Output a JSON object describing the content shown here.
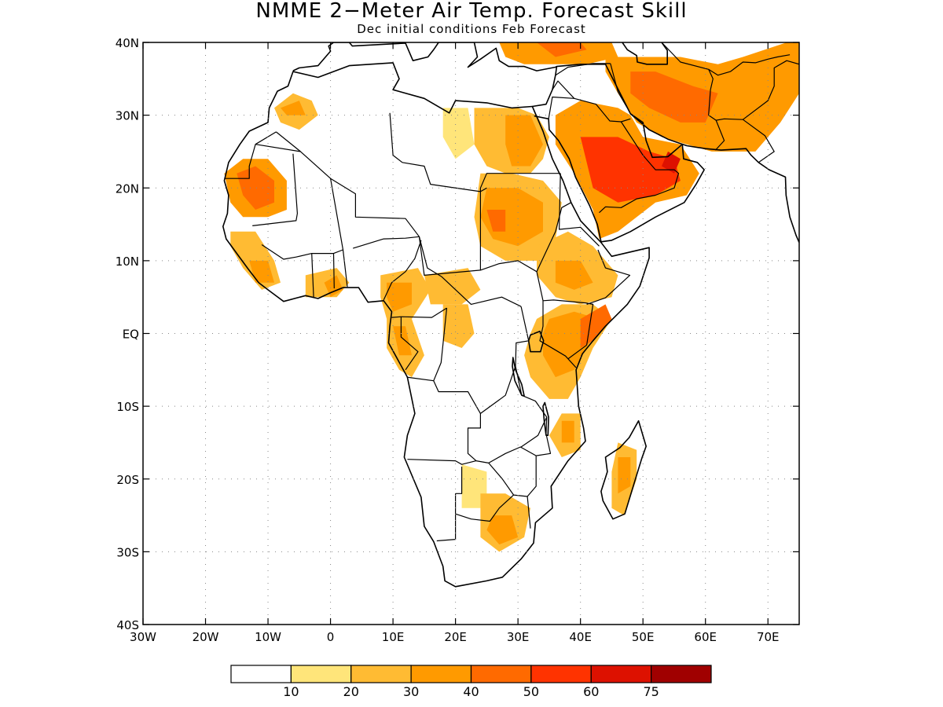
{
  "title": "NMME 2−Meter Air Temp. Forecast Skill",
  "subtitle": "Dec initial conditions  Feb Forecast",
  "map": {
    "lon_range": [
      -30,
      75
    ],
    "lat_range": [
      -40,
      40
    ],
    "grid": "dotted",
    "lon_ticks": [
      {
        "value": -30,
        "label": "30W"
      },
      {
        "value": -20,
        "label": "20W"
      },
      {
        "value": -10,
        "label": "10W"
      },
      {
        "value": 0,
        "label": "0"
      },
      {
        "value": 10,
        "label": "10E"
      },
      {
        "value": 20,
        "label": "20E"
      },
      {
        "value": 30,
        "label": "30E"
      },
      {
        "value": 40,
        "label": "40E"
      },
      {
        "value": 50,
        "label": "50E"
      },
      {
        "value": 60,
        "label": "60E"
      },
      {
        "value": 70,
        "label": "70E"
      }
    ],
    "lat_ticks": [
      {
        "value": 40,
        "label": "40N"
      },
      {
        "value": 30,
        "label": "30N"
      },
      {
        "value": 20,
        "label": "20N"
      },
      {
        "value": 10,
        "label": "10N"
      },
      {
        "value": 0,
        "label": "EQ"
      },
      {
        "value": -10,
        "label": "10S"
      },
      {
        "value": -20,
        "label": "20S"
      },
      {
        "value": -30,
        "label": "30S"
      },
      {
        "value": -40,
        "label": "40S"
      }
    ]
  },
  "colors": {
    "bins": [
      "#ffffff",
      "#ffe57a",
      "#ffbb33",
      "#ff9a00",
      "#ff6a00",
      "#ff3300",
      "#dd1100",
      "#a00000"
    ],
    "coast": "#000000"
  },
  "legend": {
    "labels": [
      "10",
      "20",
      "30",
      "40",
      "50",
      "60",
      "75"
    ]
  },
  "skill_regions": [
    {
      "name": "arabia",
      "level": 3,
      "pts": [
        [
          36,
          30
        ],
        [
          40,
          32
        ],
        [
          46,
          31
        ],
        [
          48,
          30
        ],
        [
          50,
          27
        ],
        [
          56,
          26
        ],
        [
          59,
          22
        ],
        [
          57,
          19
        ],
        [
          52,
          18
        ],
        [
          46,
          14
        ],
        [
          43,
          13
        ],
        [
          42,
          17
        ],
        [
          39,
          22
        ],
        [
          36,
          26
        ]
      ]
    },
    {
      "name": "arabia-core",
      "level": 5,
      "pts": [
        [
          40,
          27
        ],
        [
          46,
          27
        ],
        [
          51,
          25
        ],
        [
          55,
          24
        ],
        [
          56,
          21
        ],
        [
          52,
          19
        ],
        [
          46,
          18
        ],
        [
          42,
          20
        ]
      ]
    },
    {
      "name": "arabia-peak",
      "level": 6,
      "pts": [
        [
          54,
          25
        ],
        [
          56,
          24
        ],
        [
          55,
          22
        ],
        [
          53,
          23
        ]
      ]
    },
    {
      "name": "iran",
      "level": 3,
      "pts": [
        [
          44,
          38
        ],
        [
          50,
          38
        ],
        [
          56,
          38
        ],
        [
          62,
          37
        ],
        [
          66,
          38
        ],
        [
          73,
          40
        ],
        [
          75,
          40
        ],
        [
          75,
          33
        ],
        [
          72,
          29
        ],
        [
          68,
          25
        ],
        [
          61,
          25
        ],
        [
          57,
          26
        ],
        [
          53,
          27
        ],
        [
          49,
          29
        ],
        [
          46,
          33
        ],
        [
          44,
          36
        ]
      ]
    },
    {
      "name": "iran-core",
      "level": 4,
      "pts": [
        [
          48,
          36
        ],
        [
          52,
          36
        ],
        [
          58,
          34
        ],
        [
          62,
          33
        ],
        [
          60,
          29
        ],
        [
          56,
          29
        ],
        [
          51,
          31
        ],
        [
          48,
          33
        ]
      ]
    },
    {
      "name": "turkey",
      "level": 3,
      "pts": [
        [
          27,
          40
        ],
        [
          34,
          40
        ],
        [
          40,
          40
        ],
        [
          45,
          40
        ],
        [
          46,
          38
        ],
        [
          41,
          37
        ],
        [
          36,
          37
        ],
        [
          31,
          37
        ],
        [
          28,
          38
        ]
      ]
    },
    {
      "name": "turkey-core",
      "level": 4,
      "pts": [
        [
          33,
          40
        ],
        [
          40,
          40
        ],
        [
          41,
          39
        ],
        [
          36,
          38
        ]
      ]
    },
    {
      "name": "mauritania",
      "level": 3,
      "pts": [
        [
          -17,
          22
        ],
        [
          -14,
          24
        ],
        [
          -10,
          24
        ],
        [
          -7,
          21
        ],
        [
          -7,
          17
        ],
        [
          -10,
          16
        ],
        [
          -14,
          16
        ],
        [
          -16,
          18
        ]
      ]
    },
    {
      "name": "mauritania-core",
      "level": 4,
      "pts": [
        [
          -15,
          22
        ],
        [
          -12,
          23
        ],
        [
          -9,
          21
        ],
        [
          -9,
          18
        ],
        [
          -12,
          17
        ],
        [
          -14,
          19
        ]
      ]
    },
    {
      "name": "morocco",
      "level": 2,
      "pts": [
        [
          -9,
          31
        ],
        [
          -6,
          33
        ],
        [
          -3,
          32
        ],
        [
          -2,
          30
        ],
        [
          -5,
          28
        ],
        [
          -8,
          29
        ]
      ]
    },
    {
      "name": "morocco-core",
      "level": 3,
      "pts": [
        [
          -8,
          31
        ],
        [
          -5,
          32
        ],
        [
          -4,
          30
        ],
        [
          -7,
          30
        ]
      ]
    },
    {
      "name": "egypt",
      "level": 2,
      "pts": [
        [
          23,
          31
        ],
        [
          26,
          31
        ],
        [
          30,
          31
        ],
        [
          33,
          30
        ],
        [
          35,
          27
        ],
        [
          34,
          24
        ],
        [
          32,
          22
        ],
        [
          28,
          22
        ],
        [
          25,
          23
        ],
        [
          23,
          26
        ]
      ]
    },
    {
      "name": "egypt-core",
      "level": 3,
      "pts": [
        [
          28,
          30
        ],
        [
          32,
          30
        ],
        [
          34,
          26
        ],
        [
          32,
          23
        ],
        [
          29,
          23
        ],
        [
          28,
          26
        ]
      ]
    },
    {
      "name": "sudan",
      "level": 2,
      "pts": [
        [
          24,
          22
        ],
        [
          29,
          22
        ],
        [
          34,
          21
        ],
        [
          37,
          18
        ],
        [
          36,
          13
        ],
        [
          33,
          10
        ],
        [
          28,
          10
        ],
        [
          24,
          12
        ],
        [
          23,
          16
        ]
      ]
    },
    {
      "name": "sudan-core",
      "level": 3,
      "pts": [
        [
          25,
          20
        ],
        [
          30,
          20
        ],
        [
          34,
          18
        ],
        [
          34,
          14
        ],
        [
          30,
          12
        ],
        [
          26,
          13
        ],
        [
          24,
          16
        ]
      ]
    },
    {
      "name": "sudan-peak",
      "level": 4,
      "pts": [
        [
          25,
          17
        ],
        [
          28,
          17
        ],
        [
          28,
          14
        ],
        [
          26,
          14
        ]
      ]
    },
    {
      "name": "ethiopia",
      "level": 2,
      "pts": [
        [
          33,
          12
        ],
        [
          38,
          14
        ],
        [
          42,
          12
        ],
        [
          46,
          8
        ],
        [
          45,
          5
        ],
        [
          40,
          4
        ],
        [
          36,
          5
        ],
        [
          33,
          8
        ]
      ]
    },
    {
      "name": "ethiopia-core",
      "level": 3,
      "pts": [
        [
          36,
          10
        ],
        [
          40,
          10
        ],
        [
          42,
          7
        ],
        [
          39,
          6
        ],
        [
          36,
          7
        ]
      ]
    },
    {
      "name": "east-africa",
      "level": 2,
      "pts": [
        [
          33,
          2
        ],
        [
          37,
          4
        ],
        [
          42,
          4
        ],
        [
          45,
          2
        ],
        [
          42,
          -2
        ],
        [
          40,
          -6
        ],
        [
          38,
          -9
        ],
        [
          35,
          -9
        ],
        [
          32,
          -6
        ],
        [
          31,
          -3
        ],
        [
          32,
          0
        ]
      ]
    },
    {
      "name": "east-africa-core",
      "level": 3,
      "pts": [
        [
          35,
          2
        ],
        [
          39,
          3
        ],
        [
          43,
          2
        ],
        [
          41,
          -2
        ],
        [
          39,
          -5
        ],
        [
          36,
          -6
        ],
        [
          34,
          -3
        ],
        [
          34,
          0
        ]
      ]
    },
    {
      "name": "somalia-peak",
      "level": 4,
      "pts": [
        [
          40,
          2
        ],
        [
          44,
          4
        ],
        [
          45,
          2
        ],
        [
          42,
          -1
        ],
        [
          40,
          -2
        ]
      ]
    },
    {
      "name": "mozambique",
      "level": 2,
      "pts": [
        [
          37,
          -11
        ],
        [
          40,
          -11
        ],
        [
          40,
          -16
        ],
        [
          37,
          -17
        ],
        [
          35,
          -14
        ]
      ]
    },
    {
      "name": "mozambique-core",
      "level": 3,
      "pts": [
        [
          37,
          -12
        ],
        [
          39,
          -12
        ],
        [
          39,
          -15
        ],
        [
          37,
          -15
        ]
      ]
    },
    {
      "name": "madagascar",
      "level": 2,
      "pts": [
        [
          46,
          -15
        ],
        [
          49,
          -16
        ],
        [
          49,
          -20
        ],
        [
          47,
          -25
        ],
        [
          45,
          -24
        ],
        [
          45,
          -19
        ]
      ]
    },
    {
      "name": "madagascar-core",
      "level": 3,
      "pts": [
        [
          46,
          -17
        ],
        [
          48,
          -17
        ],
        [
          48,
          -21
        ],
        [
          46,
          -22
        ]
      ]
    },
    {
      "name": "southern-africa",
      "level": 2,
      "pts": [
        [
          24,
          -22
        ],
        [
          28,
          -22
        ],
        [
          32,
          -24
        ],
        [
          31,
          -28
        ],
        [
          27,
          -30
        ],
        [
          24,
          -28
        ]
      ]
    },
    {
      "name": "southern-africa-core",
      "level": 3,
      "pts": [
        [
          26,
          -25
        ],
        [
          29,
          -25
        ],
        [
          30,
          -28
        ],
        [
          27,
          -29
        ],
        [
          25,
          -27
        ]
      ]
    },
    {
      "name": "west-coast",
      "level": 2,
      "pts": [
        [
          -16,
          14
        ],
        [
          -12,
          14
        ],
        [
          -9,
          10
        ],
        [
          -8,
          7
        ],
        [
          -11,
          6
        ],
        [
          -14,
          9
        ],
        [
          -16,
          12
        ]
      ]
    },
    {
      "name": "west-coast-core",
      "level": 3,
      "pts": [
        [
          -13,
          10
        ],
        [
          -10,
          10
        ],
        [
          -9,
          7
        ],
        [
          -12,
          7
        ]
      ]
    },
    {
      "name": "ghana",
      "level": 2,
      "pts": [
        [
          -4,
          8
        ],
        [
          1,
          9
        ],
        [
          3,
          7
        ],
        [
          1,
          5
        ],
        [
          -4,
          5
        ]
      ]
    },
    {
      "name": "ghana-core",
      "level": 3,
      "pts": [
        [
          -1,
          7
        ],
        [
          1,
          8
        ],
        [
          2,
          6
        ],
        [
          0,
          5
        ]
      ]
    },
    {
      "name": "cameroon",
      "level": 2,
      "pts": [
        [
          8,
          8
        ],
        [
          14,
          9
        ],
        [
          16,
          6
        ],
        [
          13,
          2
        ],
        [
          9,
          2
        ],
        [
          8,
          5
        ]
      ]
    },
    {
      "name": "cameroon-core",
      "level": 3,
      "pts": [
        [
          9,
          7
        ],
        [
          13,
          7
        ],
        [
          13,
          4
        ],
        [
          10,
          3
        ],
        [
          9,
          5
        ]
      ]
    },
    {
      "name": "gabon-congo",
      "level": 2,
      "pts": [
        [
          9,
          2
        ],
        [
          13,
          2
        ],
        [
          15,
          -3
        ],
        [
          13,
          -6
        ],
        [
          11,
          -5
        ],
        [
          9,
          -2
        ]
      ]
    },
    {
      "name": "gabon-congo-core",
      "level": 3,
      "pts": [
        [
          10,
          1
        ],
        [
          12,
          1
        ],
        [
          13,
          -3
        ],
        [
          11,
          -3
        ]
      ]
    },
    {
      "name": "car",
      "level": 2,
      "pts": [
        [
          15,
          8
        ],
        [
          22,
          9
        ],
        [
          24,
          6
        ],
        [
          21,
          4
        ],
        [
          16,
          4
        ]
      ]
    },
    {
      "name": "drc-patch",
      "level": 2,
      "pts": [
        [
          18,
          4
        ],
        [
          22,
          4
        ],
        [
          23,
          0
        ],
        [
          21,
          -2
        ],
        [
          18,
          -1
        ]
      ]
    },
    {
      "name": "botswana-patch",
      "level": 1,
      "pts": [
        [
          21,
          -18
        ],
        [
          25,
          -19
        ],
        [
          25,
          -24
        ],
        [
          21,
          -24
        ]
      ]
    },
    {
      "name": "libya-patch",
      "level": 1,
      "pts": [
        [
          18,
          31
        ],
        [
          22,
          31
        ],
        [
          23,
          26
        ],
        [
          20,
          24
        ],
        [
          18,
          27
        ]
      ]
    }
  ]
}
